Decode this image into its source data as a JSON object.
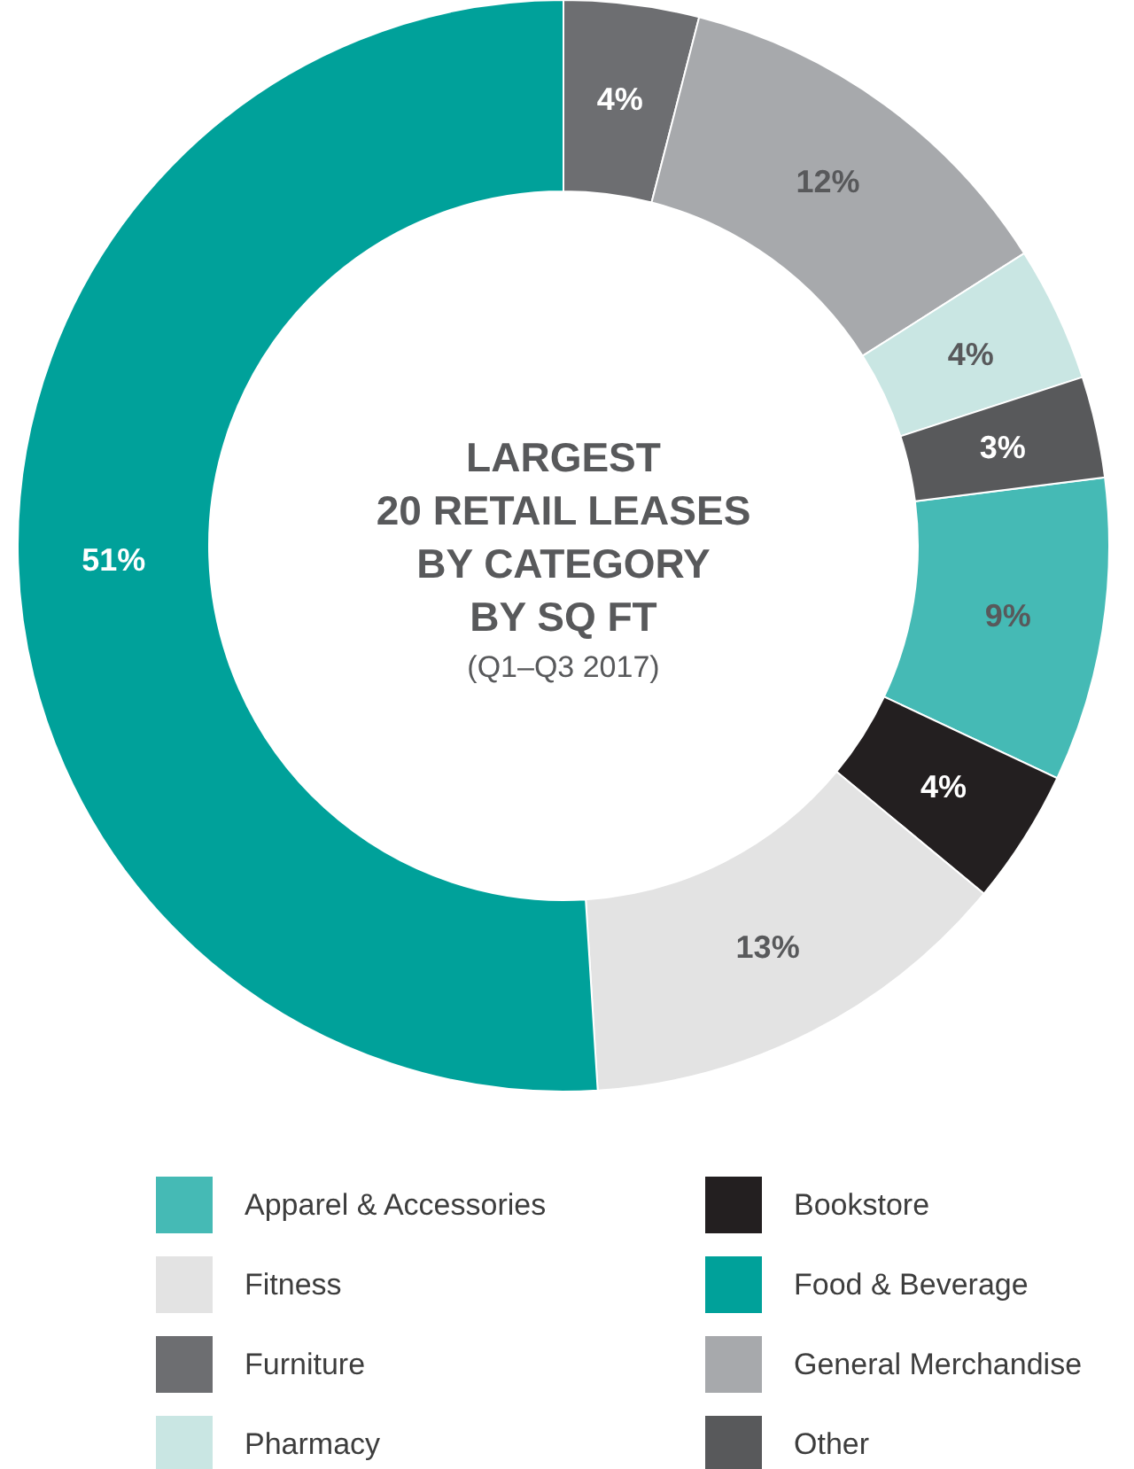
{
  "chart_data": {
    "type": "donut",
    "title": "LARGEST\n20 RETAIL LEASES\nBY CATEGORY\nBY SQ FT",
    "subtitle": "(Q1–Q3 2017)",
    "categories": [
      "Apparel & Accessories",
      "Bookstore",
      "Fitness",
      "Food & Beverage",
      "Furniture",
      "General Merchandise",
      "Pharmacy",
      "Other"
    ],
    "values": [
      9,
      4,
      13,
      51,
      4,
      12,
      4,
      3
    ],
    "value_labels": [
      "9%",
      "4%",
      "13%",
      "51%",
      "4%",
      "12%",
      "4%",
      "3%"
    ],
    "colors": [
      "#45bab5",
      "#231f20",
      "#e3e3e3",
      "#00a19a",
      "#6d6e71",
      "#a7a9ac",
      "#c9e6e3",
      "#58595b"
    ],
    "legend": "bottom"
  }
}
